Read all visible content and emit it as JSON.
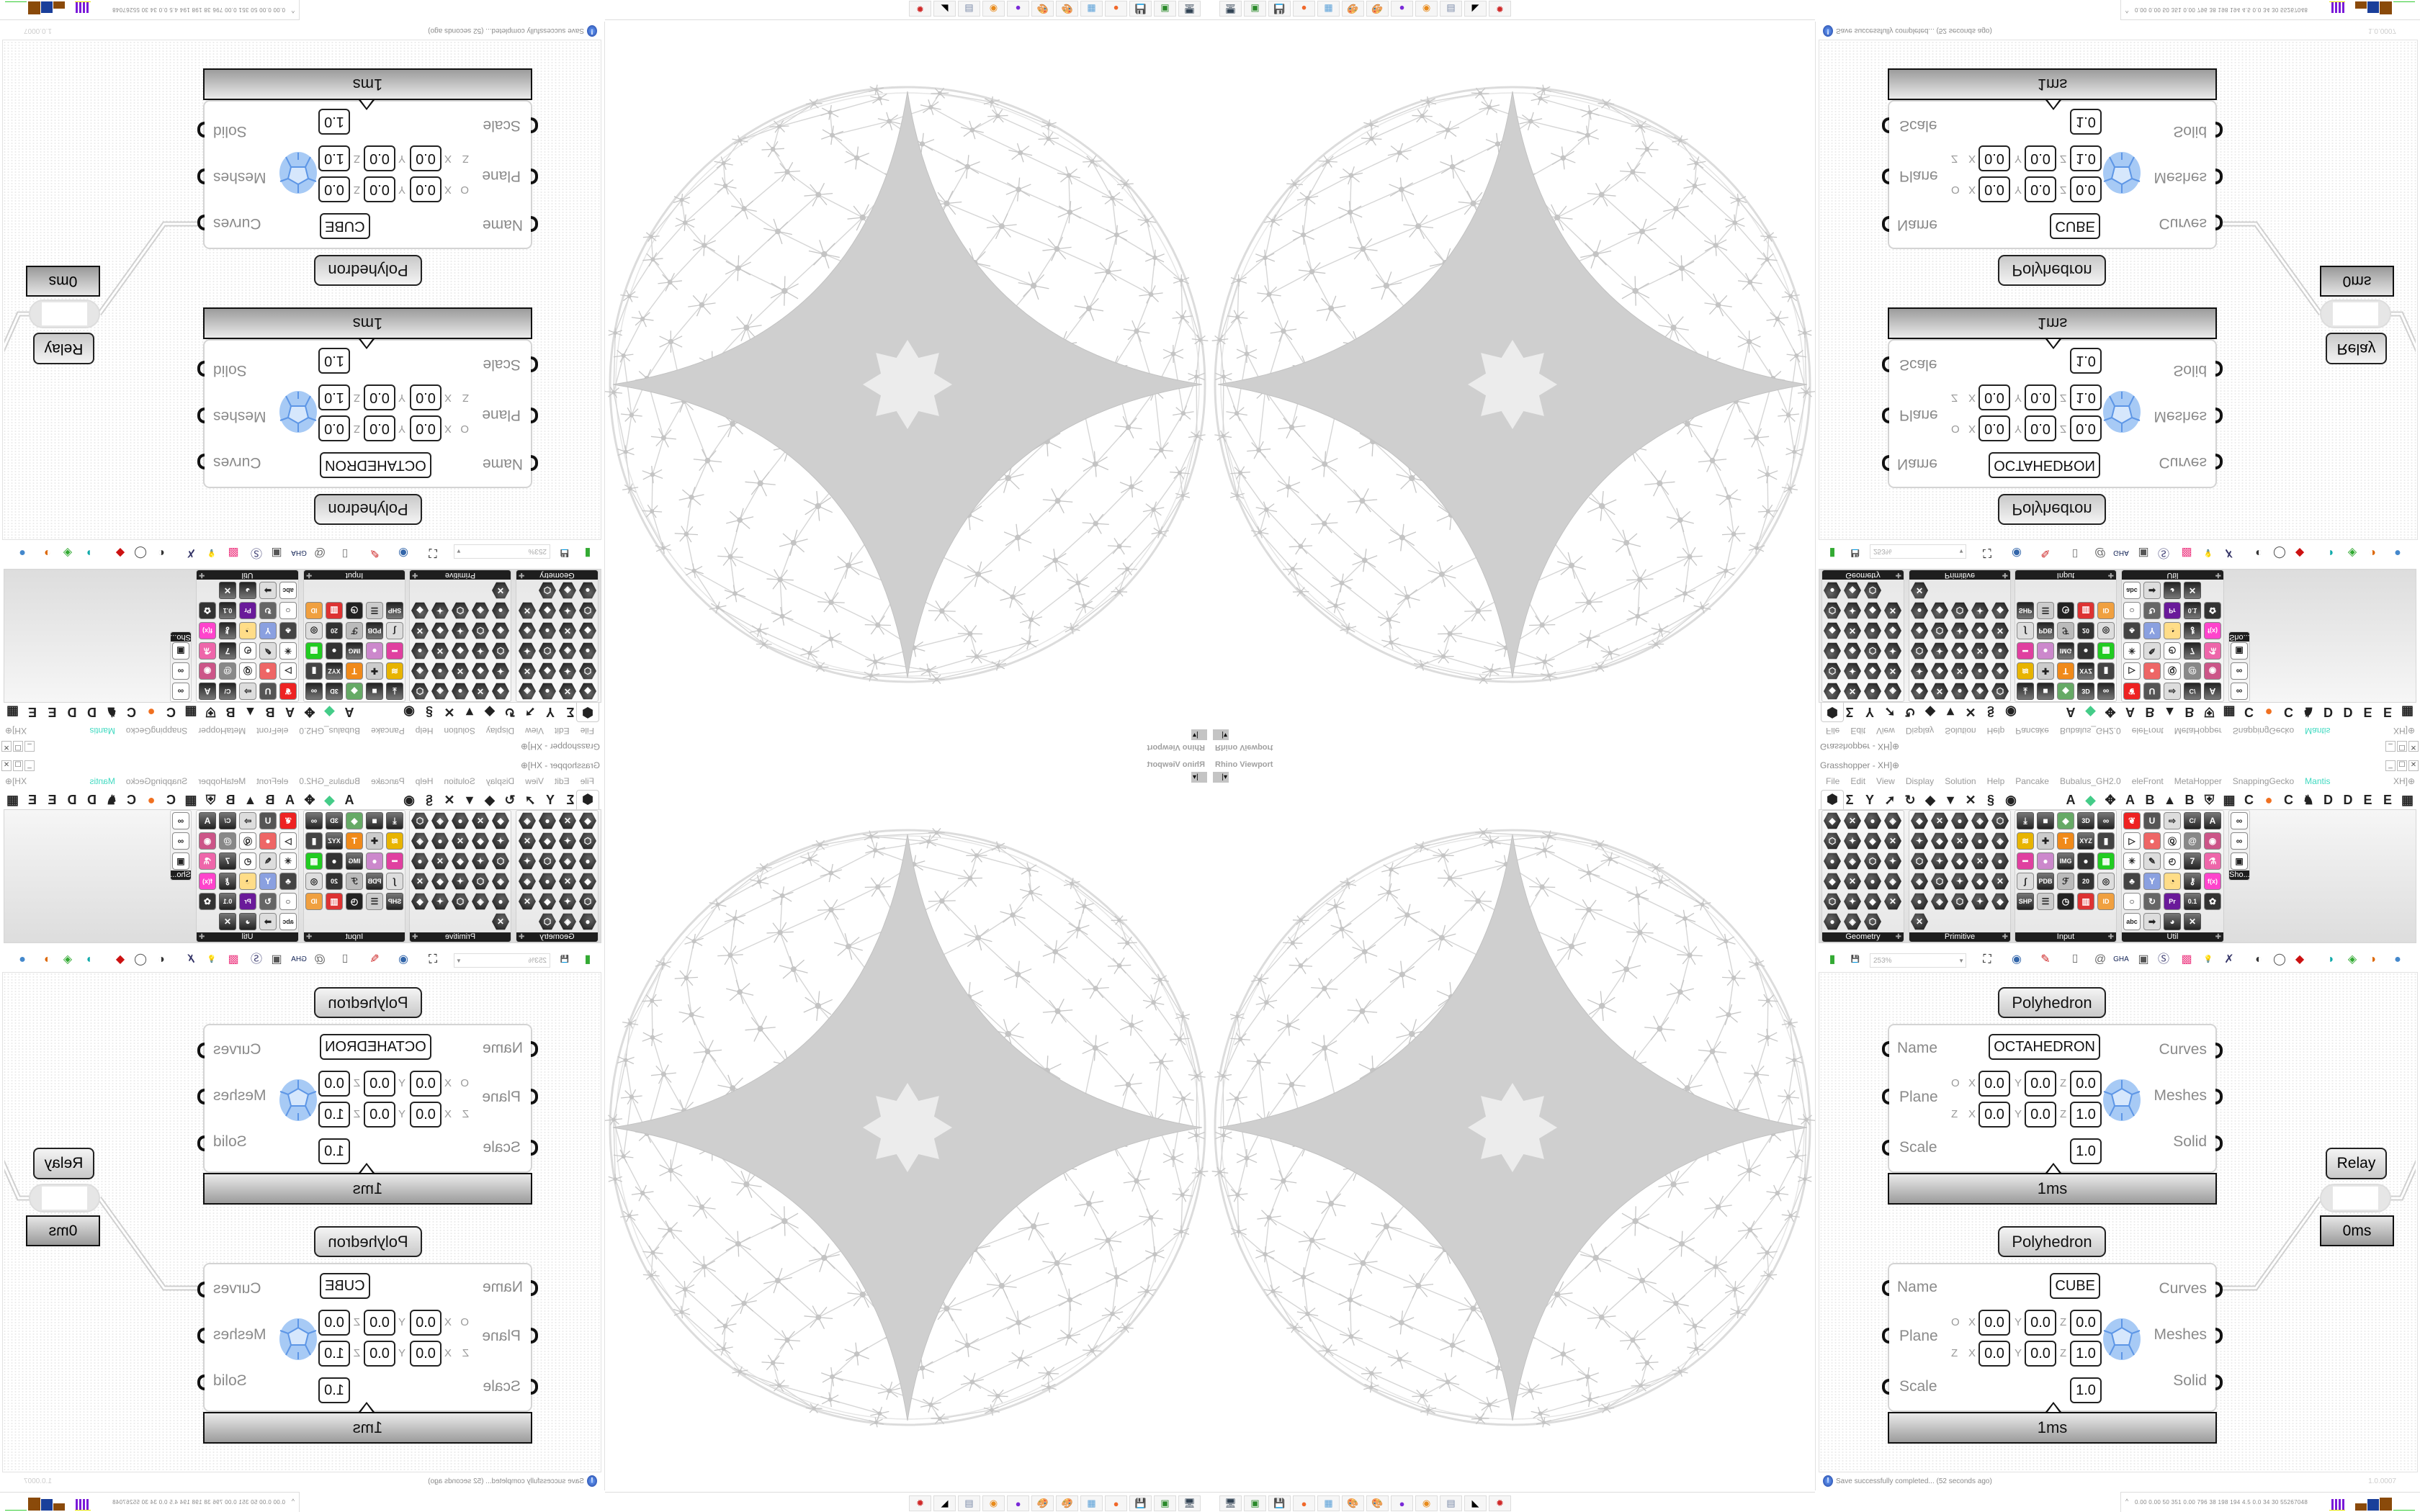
{
  "viewport": {
    "title": "Rhino Viewport",
    "dropdown": "|▾"
  },
  "taskbar": {
    "apps": [
      {
        "name": "screen-capture",
        "glyph": "🖥",
        "color": "#345"
      },
      {
        "name": "terminal",
        "glyph": "▣",
        "color": "#2a8a2a"
      },
      {
        "name": "floppy-64",
        "glyph": "💾",
        "color": "#336"
      },
      {
        "name": "firefox",
        "glyph": "●",
        "color": "#f0682a"
      },
      {
        "name": "calculator",
        "glyph": "▦",
        "color": "#5aa0d8"
      },
      {
        "name": "paint",
        "glyph": "🎨",
        "color": "#d89a2a"
      },
      {
        "name": "paint-2",
        "glyph": "🎨",
        "color": "#d89a2a"
      },
      {
        "name": "chat",
        "glyph": "●",
        "color": "#7a2ad8"
      },
      {
        "name": "blender",
        "glyph": "◉",
        "color": "#e88a1a"
      },
      {
        "name": "scroll",
        "glyph": "▤",
        "color": "#7a8aa8"
      },
      {
        "name": "rhino",
        "glyph": "◣",
        "color": "#000"
      },
      {
        "name": "bug",
        "glyph": "✹",
        "color": "#d02a2a"
      }
    ]
  },
  "tray": {
    "caret": "^",
    "readout": "0.00 0.00 50 351 0.00 796 38 198 194 4.5 0.0 34 30 55267048"
  },
  "grasshopper": {
    "title": "Grasshopper - XH]⊕",
    "window_controls": [
      "_",
      "☐",
      "✕"
    ],
    "menu": [
      "File",
      "Edit",
      "View",
      "Display",
      "Solution",
      "Help",
      "Pancake",
      "Bubalus_GH2.0",
      "eleFront",
      "MetaHopper",
      "SnappingGecko",
      "Mantis"
    ],
    "menu_active": "Mantis",
    "doc_tab": "XH]⊕",
    "tabs": [
      {
        "name": "params",
        "glyph": "⬢"
      },
      {
        "name": "maths",
        "glyph": "Σ"
      },
      {
        "name": "sets",
        "glyph": "Y"
      },
      {
        "name": "vector",
        "glyph": "➚"
      },
      {
        "name": "curve",
        "glyph": "↻"
      },
      {
        "name": "surface",
        "glyph": "◆"
      },
      {
        "name": "mesh",
        "glyph": "▼"
      },
      {
        "name": "intersect",
        "glyph": "✕"
      },
      {
        "name": "transform",
        "glyph": "§"
      },
      {
        "name": "display",
        "glyph": "◉"
      },
      {
        "name": "plugin-a",
        "glyph": "A"
      },
      {
        "name": "plugin-gem",
        "glyph": "◆"
      },
      {
        "name": "plugin-figure",
        "glyph": "✥"
      },
      {
        "name": "plugin-a-2",
        "glyph": "A"
      },
      {
        "name": "plugin-b",
        "glyph": "B"
      },
      {
        "name": "plugin-mountain",
        "glyph": "▲"
      },
      {
        "name": "plugin-b-2",
        "glyph": "B"
      },
      {
        "name": "plugin-shield",
        "glyph": "⛨"
      },
      {
        "name": "plugin-grid",
        "glyph": "▦"
      },
      {
        "name": "plugin-c",
        "glyph": "C"
      },
      {
        "name": "plugin-orange",
        "glyph": "●"
      },
      {
        "name": "plugin-c-2",
        "glyph": "C"
      },
      {
        "name": "plugin-rooster",
        "glyph": "♞"
      },
      {
        "name": "plugin-d",
        "glyph": "D"
      },
      {
        "name": "plugin-d-2",
        "glyph": "D"
      },
      {
        "name": "plugin-e",
        "glyph": "E"
      },
      {
        "name": "plugin-e-2",
        "glyph": "E"
      },
      {
        "name": "plugin-grid-2",
        "glyph": "▦"
      }
    ],
    "panels": [
      {
        "label": "Geometry",
        "style": "hex",
        "cols": 4,
        "icons": [
          "line",
          "segment",
          "polyline",
          "spiral",
          "point",
          "rectangle",
          "quad",
          "polygon",
          "vector",
          "diamond",
          "text",
          "wave",
          "circle",
          "box",
          "cap",
          "atom",
          "arc",
          "sphere",
          "frame",
          "gear",
          "surface",
          "net",
          "magnet"
        ]
      },
      {
        "label": "Primitive",
        "style": "hex",
        "cols": 5,
        "icons": [
          "boolean",
          "star",
          "matrix",
          "arc-prim",
          "path",
          "polyface",
          "stripes",
          "clock",
          "picture",
          "gear-prim",
          "shear",
          "uc",
          "hatch",
          "file",
          "number-7",
          "cross",
          "tree",
          "leaf",
          "decimal",
          "hash",
          "complex",
          "document",
          "text-a",
          "id",
          "ball",
          "eye"
        ]
      },
      {
        "label": "Input",
        "style": "sq",
        "cols": 5,
        "icons": [
          {
            "n": "import",
            "g": "⤓"
          },
          {
            "n": "black-box",
            "g": "■"
          },
          {
            "n": "gem-color",
            "g": "◆",
            "c": "#6a6"
          },
          {
            "n": "3dm",
            "g": "3D"
          },
          {
            "n": "link",
            "g": "∞"
          },
          {
            "n": "slider-yellow",
            "g": "≋",
            "c": "#e8b400"
          },
          {
            "n": "gumball",
            "g": "✚",
            "c": "#ccc"
          },
          {
            "n": "mushroom",
            "g": "T",
            "c": "#f08a1a"
          },
          {
            "n": "xyz",
            "g": "XYZ"
          },
          {
            "n": "toggle",
            "g": "▮",
            "c": "#444"
          },
          {
            "n": "gradient-pink",
            "g": "━",
            "c": "#e040a0"
          },
          {
            "n": "color-wheel",
            "g": "●",
            "c": "#c8c"
          },
          {
            "n": "img",
            "g": "IMG"
          },
          {
            "n": "button",
            "g": "●",
            "c": "#333"
          },
          {
            "n": "checker-green",
            "g": "▦",
            "c": "#2c2"
          },
          {
            "n": "graph",
            "g": "∫",
            "c": "#ddd"
          },
          {
            "n": "pdb",
            "g": "PDB"
          },
          {
            "n": "dial",
            "g": "ℱ",
            "c": "#bbb"
          },
          {
            "n": "calendar",
            "g": "20",
            "c": "#333"
          },
          {
            "n": "orbit",
            "g": "◎",
            "c": "#ddd"
          },
          {
            "n": "shp",
            "g": "SHP"
          },
          {
            "n": "list",
            "g": "☰",
            "c": "#ccc"
          },
          {
            "n": "clock",
            "g": "◷",
            "c": "#222"
          },
          {
            "n": "swatch-rainbow",
            "g": "▥",
            "c": "#d33"
          },
          {
            "n": "id-tag",
            "g": "ID",
            "c": "#f0a040"
          }
        ]
      },
      {
        "label": "Util",
        "style": "sq",
        "cols": 5,
        "icons": [
          {
            "n": "cherry",
            "g": "❦",
            "c": "#e22"
          },
          {
            "n": "magnet-u",
            "g": "U",
            "c": "#555"
          },
          {
            "n": "arrow-right",
            "g": "⇨",
            "c": "#ddd"
          },
          {
            "n": "c-hex",
            "g": "C/"
          },
          {
            "n": "a-hex",
            "g": "A"
          },
          {
            "n": "play",
            "g": "▷",
            "c": "#fff"
          },
          {
            "n": "record",
            "g": "●",
            "c": "#e66"
          },
          {
            "n": "search-arrow",
            "g": "Ⓠ",
            "c": "#fff"
          },
          {
            "n": "spiral-u",
            "g": "@",
            "c": "#888"
          },
          {
            "n": "eye-pink",
            "g": "◉",
            "c": "#c58"
          },
          {
            "n": "axes",
            "g": "✳",
            "c": "#fff"
          },
          {
            "n": "pencil",
            "g": "✎",
            "c": "#ddd"
          },
          {
            "n": "timer",
            "g": "◴",
            "c": "#fff"
          },
          {
            "n": "seven",
            "g": "7"
          },
          {
            "n": "flask",
            "g": "⚗",
            "c": "#e6a"
          },
          {
            "n": "tree-photo",
            "g": "♣",
            "c": "#444"
          },
          {
            "n": "y-box",
            "g": "Y",
            "c": "#8aa0e0"
          },
          {
            "n": "egg",
            "g": "◔",
            "c": "#fd8"
          },
          {
            "n": "key",
            "g": "⚷"
          },
          {
            "n": "fx",
            "g": "f(x)",
            "c": "#f4c"
          },
          {
            "n": "ring",
            "g": "○",
            "c": "#fff"
          },
          {
            "n": "reload",
            "g": "↻",
            "c": "#666"
          },
          {
            "n": "premiere",
            "g": "Pr",
            "c": "#6a1a9a"
          },
          {
            "n": "decimal-hex",
            "g": "0.1"
          },
          {
            "n": "palette",
            "g": "✿",
            "c": "#333"
          },
          {
            "n": "abc",
            "g": "abc",
            "c": "#fff"
          },
          {
            "n": "arrow-dark",
            "g": "➡",
            "c": "#ddd"
          },
          {
            "n": "gauge",
            "g": "◕"
          },
          {
            "n": "close-hex",
            "g": "✕"
          }
        ]
      },
      {
        "label": "Sho...",
        "style": "tool",
        "cols": 1,
        "icons": [
          {
            "n": "goggles",
            "g": "∞",
            "c": "#fff"
          },
          {
            "n": "goggles-2",
            "g": "∞",
            "c": "#fff"
          },
          {
            "n": "presentation",
            "g": "▣",
            "c": "#fff"
          }
        ]
      }
    ],
    "toolbar": {
      "zoom": "253%",
      "icons": [
        {
          "n": "new-document",
          "g": "▮",
          "c": "#3a3"
        },
        {
          "n": "save",
          "g": "💾",
          "c": "#24a"
        },
        {
          "n": "zoom-extents",
          "g": "⛶",
          "c": "#111"
        },
        {
          "n": "preview-eye",
          "g": "◉",
          "c": "#36a"
        },
        {
          "n": "sketch-brush",
          "g": "✎",
          "c": "#c22"
        },
        {
          "n": "capsule",
          "g": "⌷",
          "c": "#222"
        },
        {
          "n": "email",
          "g": "@",
          "c": "#666"
        },
        {
          "n": "gha",
          "g": "GHA",
          "c": "#125"
        },
        {
          "n": "window",
          "g": "▣",
          "c": "#555"
        },
        {
          "n": "search-s",
          "g": "Ⓢ",
          "c": "#447"
        },
        {
          "n": "package",
          "g": "▩",
          "c": "#e48"
        },
        {
          "n": "bulb",
          "g": "💡",
          "c": "#99c"
        },
        {
          "n": "crossover",
          "g": "✗",
          "c": "#336"
        },
        {
          "n": "shaded",
          "g": "◐",
          "c": "#333"
        },
        {
          "n": "wire-display",
          "g": "◯",
          "c": "#555"
        },
        {
          "n": "red-gem",
          "g": "◆",
          "c": "#c11"
        },
        {
          "n": "teal-shape",
          "g": "◗",
          "c": "#1aa"
        },
        {
          "n": "green-shape",
          "g": "◈",
          "c": "#3a3"
        },
        {
          "n": "half-sphere",
          "g": "◑",
          "c": "#d60"
        },
        {
          "n": "blue-sphere",
          "g": "●",
          "c": "#48c"
        }
      ]
    },
    "components": [
      {
        "title": "Polyhedron",
        "name_value": "OCTAHEDRON",
        "inputs": [
          "Name",
          "Plane",
          "Scale"
        ],
        "outputs": [
          "Curves",
          "Meshes",
          "Solid"
        ],
        "origin_label": "O",
        "zaxis_label": "Z",
        "axis_labels": [
          "X",
          "Y",
          "Z"
        ],
        "origin": [
          "0.0",
          "0.0",
          "0.0"
        ],
        "zaxis": [
          "0.0",
          "0.0",
          "1.0"
        ],
        "scale": "1.0",
        "time": "1ms"
      },
      {
        "title": "Polyhedron",
        "name_value": "CUBE",
        "inputs": [
          "Name",
          "Plane",
          "Scale"
        ],
        "outputs": [
          "Curves",
          "Meshes",
          "Solid"
        ],
        "origin_label": "O",
        "zaxis_label": "Z",
        "axis_labels": [
          "X",
          "Y",
          "Z"
        ],
        "origin": [
          "0.0",
          "0.0",
          "0.0"
        ],
        "zaxis": [
          "0.0",
          "0.0",
          "1.0"
        ],
        "scale": "1.0",
        "time": "1ms"
      }
    ],
    "relay": {
      "label": "Relay",
      "time": "0ms"
    },
    "status": {
      "icon": "!",
      "message": "Save successfully completed... (52 seconds ago)",
      "version": "1.0.0007"
    }
  },
  "colors": {
    "menu_active": "#3fd9c0",
    "mesh_icon": "#8ab8f2",
    "panel_label": "#1e1e1e",
    "sphere_gray": "#cfcfcf",
    "tray_purple": "#7a1ad8",
    "tray_brown": "#8a4a0a",
    "tray_blue": "#1a3f9a"
  }
}
